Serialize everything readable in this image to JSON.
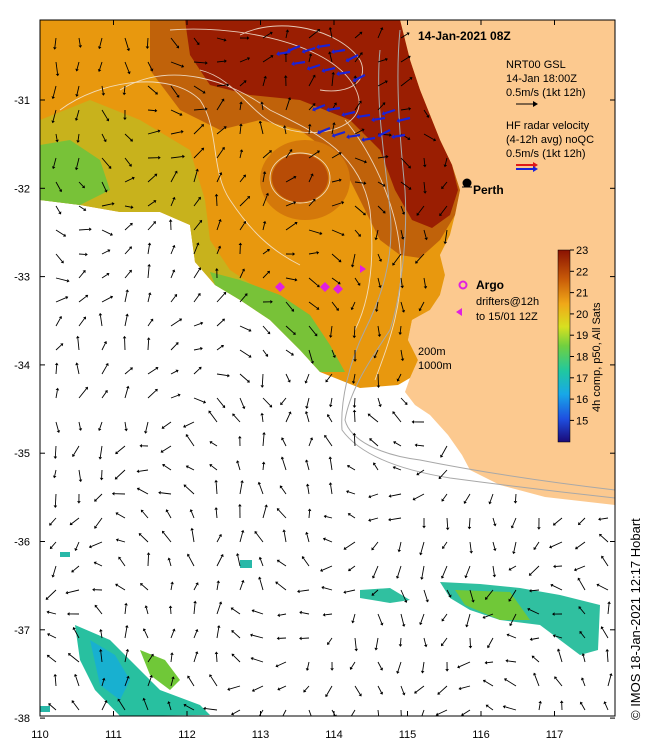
{
  "title": "14-Jan-2021 08Z",
  "model_legend": {
    "line1": "NRT00 GSL",
    "line2": "14-Jan 18:00Z",
    "line3": "0.5m/s (1kt 12h)"
  },
  "radar_legend": {
    "line1": "HF radar velocity",
    "line2": "(4-12h avg) noQC",
    "line3": "0.5m/s (1kt 12h)"
  },
  "city": "Perth",
  "argo": {
    "label": "Argo",
    "line1": "drifters@12h",
    "line2": "to 15/01 12Z"
  },
  "contours": {
    "line1": "200m",
    "line2": "1000m"
  },
  "colorbar": {
    "label": "4h comp, p50, All Sats",
    "ticks": [
      "23",
      "22",
      "21",
      "20",
      "19",
      "18",
      "17",
      "16",
      "15"
    ]
  },
  "credit": "© IMOS 18-Jan-2021 12:17 Hobart",
  "x_ticks": [
    "110",
    "111",
    "112",
    "113",
    "114",
    "115",
    "116",
    "117"
  ],
  "y_ticks": [
    "-31",
    "-32",
    "-33",
    "-34",
    "-35",
    "-36",
    "-37",
    "-38"
  ],
  "colors": {
    "land": "#fcc98f",
    "warm": "#9a1e02",
    "hot": "#b85a04",
    "mid": "#e0900c",
    "cool": "#66c23a",
    "cold": "#28b8a8",
    "model_arrow": "#000000",
    "radar_arrow": "#1a22d8",
    "argo": "#e020e0"
  }
}
